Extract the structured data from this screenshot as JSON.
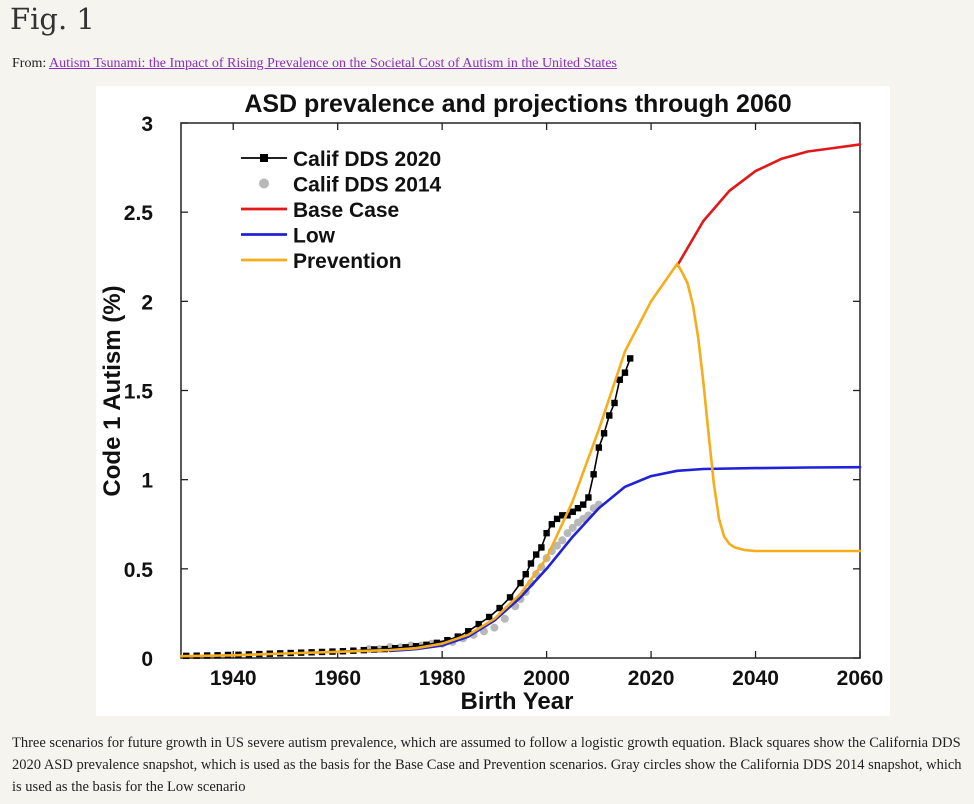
{
  "figure": {
    "label": "Fig. 1"
  },
  "source": {
    "prefix": "From: ",
    "link_text": "Autism Tsunami: the Impact of Rising Prevalence on the Societal Cost of Autism in the United States"
  },
  "caption": "Three scenarios for future growth in US severe autism prevalence, which are assumed to follow a logistic growth equation. Black squares show the California DDS 2020 ASD prevalence snapshot, which is used as the basis for the Base Case and Prevention scenarios. Gray circles show the California DDS 2014 snapshot, which is used as the basis for the Low scenario",
  "chart_data": {
    "type": "line",
    "title": "ASD prevalence and projections through 2060",
    "xlabel": "Birth Year",
    "ylabel": "Code 1 Autism (%)",
    "xlim": [
      1930,
      2060
    ],
    "ylim": [
      0,
      3
    ],
    "x_ticks": [
      1940,
      1960,
      1980,
      2000,
      2020,
      2040,
      2060
    ],
    "y_ticks": [
      0,
      0.5,
      1,
      1.5,
      2,
      2.5,
      3
    ],
    "y_tick_labels": [
      "0",
      "0.5",
      "1",
      "1.5",
      "2",
      "2.5",
      "3"
    ],
    "grid": false,
    "legend_position": "top-left",
    "colors": {
      "calif_2020": "#000000",
      "calif_2014": "#b8b8b8",
      "base_case": "#e01818",
      "low": "#1f22d8",
      "prevention": "#f5ad1c"
    },
    "series": [
      {
        "name": "Calif DDS 2020",
        "style": "line-square",
        "x": [
          1931,
          1933,
          1935,
          1937,
          1939,
          1941,
          1943,
          1945,
          1947,
          1949,
          1951,
          1953,
          1955,
          1957,
          1959,
          1961,
          1963,
          1965,
          1967,
          1969,
          1971,
          1973,
          1975,
          1977,
          1979,
          1981,
          1983,
          1985,
          1987,
          1989,
          1991,
          1993,
          1995,
          1996,
          1997,
          1998,
          1999,
          2000,
          2001,
          2002,
          2003,
          2004,
          2005,
          2006,
          2007,
          2008,
          2009,
          2010,
          2011,
          2012,
          2013,
          2014,
          2015,
          2016
        ],
        "y": [
          0.012,
          0.013,
          0.014,
          0.015,
          0.017,
          0.018,
          0.02,
          0.022,
          0.024,
          0.026,
          0.028,
          0.03,
          0.032,
          0.034,
          0.036,
          0.038,
          0.041,
          0.044,
          0.048,
          0.05,
          0.055,
          0.06,
          0.066,
          0.074,
          0.085,
          0.1,
          0.12,
          0.15,
          0.19,
          0.23,
          0.28,
          0.34,
          0.42,
          0.47,
          0.53,
          0.58,
          0.62,
          0.7,
          0.75,
          0.78,
          0.8,
          0.8,
          0.82,
          0.84,
          0.86,
          0.9,
          1.03,
          1.18,
          1.26,
          1.36,
          1.43,
          1.56,
          1.6,
          1.68
        ]
      },
      {
        "name": "Calif DDS 2014",
        "style": "gray-circles",
        "x": [
          1966,
          1968,
          1970,
          1972,
          1974,
          1976,
          1978,
          1980,
          1982,
          1984,
          1986,
          1988,
          1990,
          1992,
          1994,
          1995,
          1996,
          1997,
          1998,
          1999,
          2000,
          2001,
          2002,
          2003,
          2004,
          2005,
          2006,
          2007,
          2008,
          2009,
          2010
        ],
        "y": [
          0.05,
          0.05,
          0.06,
          0.06,
          0.07,
          0.07,
          0.08,
          0.08,
          0.09,
          0.11,
          0.13,
          0.15,
          0.17,
          0.22,
          0.29,
          0.33,
          0.37,
          0.42,
          0.47,
          0.51,
          0.56,
          0.6,
          0.63,
          0.66,
          0.7,
          0.73,
          0.76,
          0.78,
          0.8,
          0.84,
          0.86
        ]
      },
      {
        "name": "Base Case",
        "style": "line",
        "x": [
          2025,
          2030,
          2035,
          2040,
          2045,
          2050,
          2055,
          2060
        ],
        "y": [
          2.2,
          2.45,
          2.62,
          2.73,
          2.8,
          2.84,
          2.86,
          2.88
        ]
      },
      {
        "name": "Low",
        "style": "line",
        "x": [
          1970,
          1975,
          1980,
          1985,
          1990,
          1995,
          2000,
          2005,
          2010,
          2015,
          2020,
          2025,
          2030,
          2040,
          2050,
          2060
        ],
        "y": [
          0.04,
          0.05,
          0.07,
          0.12,
          0.21,
          0.34,
          0.5,
          0.68,
          0.84,
          0.96,
          1.02,
          1.05,
          1.06,
          1.065,
          1.068,
          1.07
        ]
      },
      {
        "name": "Prevention",
        "style": "line",
        "x": [
          1930,
          1940,
          1950,
          1960,
          1970,
          1975,
          1980,
          1985,
          1990,
          1995,
          2000,
          2005,
          2010,
          2015,
          2020,
          2025,
          2026,
          2027,
          2028,
          2029,
          2030,
          2031,
          2032,
          2033,
          2034,
          2035,
          2036,
          2038,
          2040,
          2045,
          2050,
          2055,
          2060
        ],
        "y": [
          0.01,
          0.015,
          0.025,
          0.035,
          0.045,
          0.055,
          0.08,
          0.13,
          0.22,
          0.36,
          0.56,
          0.88,
          1.28,
          1.72,
          2.0,
          2.21,
          2.16,
          2.1,
          1.98,
          1.8,
          1.55,
          1.26,
          0.98,
          0.78,
          0.68,
          0.64,
          0.62,
          0.605,
          0.6,
          0.6,
          0.6,
          0.6,
          0.6
        ]
      }
    ]
  }
}
